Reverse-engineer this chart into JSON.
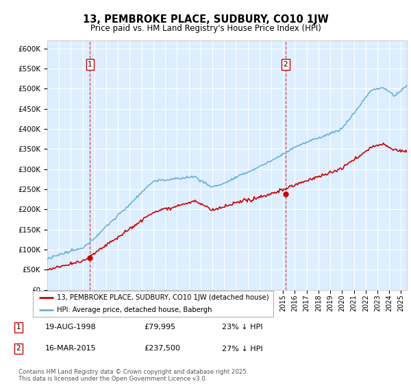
{
  "title": "13, PEMBROKE PLACE, SUDBURY, CO10 1JW",
  "subtitle": "Price paid vs. HM Land Registry's House Price Index (HPI)",
  "ylim": [
    0,
    620000
  ],
  "yticks": [
    0,
    50000,
    100000,
    150000,
    200000,
    250000,
    300000,
    350000,
    400000,
    450000,
    500000,
    550000,
    600000
  ],
  "xlim_start": 1995.0,
  "xlim_end": 2025.5,
  "sale1_date": 1998.63,
  "sale1_price": 79995,
  "sale2_date": 2015.21,
  "sale2_price": 237500,
  "hpi_color": "#6ab0de",
  "price_color": "#cc0000",
  "vline_color": "#cc0000",
  "plot_bg": "#ddeeff",
  "legend_entry1": "13, PEMBROKE PLACE, SUDBURY, CO10 1JW (detached house)",
  "legend_entry2": "HPI: Average price, detached house, Babergh",
  "annotation1_date": "19-AUG-1998",
  "annotation1_price": "£79,995",
  "annotation1_hpi": "23% ↓ HPI",
  "annotation2_date": "16-MAR-2015",
  "annotation2_price": "£237,500",
  "annotation2_hpi": "27% ↓ HPI",
  "footer": "Contains HM Land Registry data © Crown copyright and database right 2025.\nThis data is licensed under the Open Government Licence v3.0."
}
